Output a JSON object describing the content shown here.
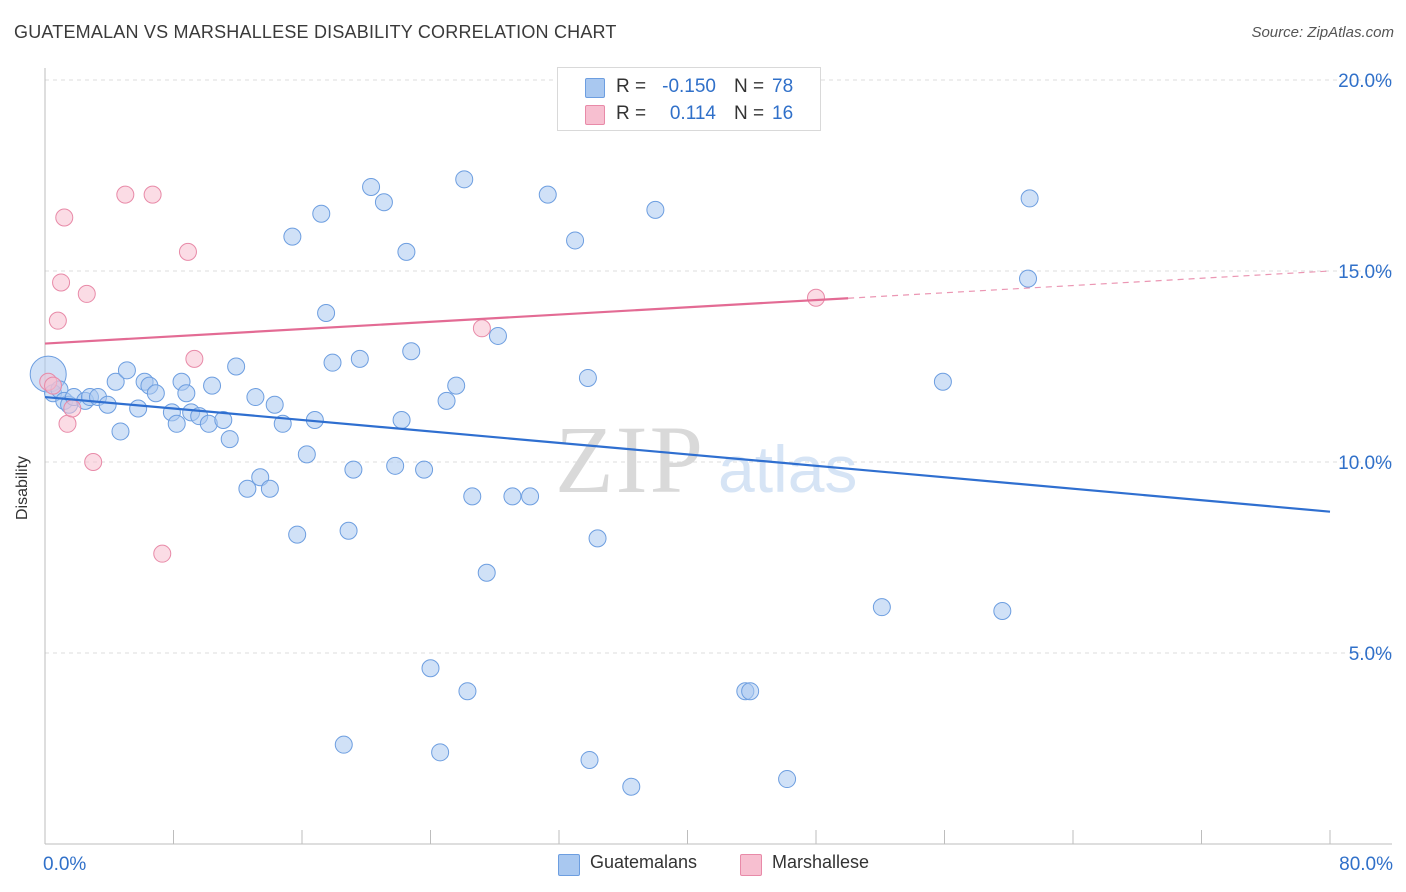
{
  "title": "GUATEMALAN VS MARSHALLESE DISABILITY CORRELATION CHART",
  "source": "Source: ZipAtlas.com",
  "watermark": {
    "zip": "ZIP",
    "atlas": "atlas"
  },
  "stats": [
    {
      "r_label": "R =",
      "r_value": "-0.150",
      "n_label": "N =",
      "n_value": "78",
      "color": "#a9c8f0",
      "border": "#6d9ee0"
    },
    {
      "r_label": "R =",
      "r_value": "0.114",
      "n_label": "N =",
      "n_value": "16",
      "color": "#f7bfd0",
      "border": "#e88aa8"
    }
  ],
  "legend": [
    {
      "label": "Guatemalans",
      "color": "#a9c8f0",
      "border": "#6d9ee0"
    },
    {
      "label": "Marshallese",
      "color": "#f7bfd0",
      "border": "#e88aa8"
    }
  ],
  "chart_data": {
    "type": "scatter",
    "title": "GUATEMALAN VS MARSHALLESE DISABILITY CORRELATION CHART",
    "xlabel": "",
    "ylabel": "Disability",
    "xlim": [
      0,
      80
    ],
    "ylim": [
      0,
      20
    ],
    "x_tick_labels": [
      {
        "value": 0,
        "label": "0.0%"
      },
      {
        "value": 80,
        "label": "80.0%"
      }
    ],
    "y_tick_labels": [
      {
        "value": 5,
        "label": "5.0%"
      },
      {
        "value": 10,
        "label": "10.0%"
      },
      {
        "value": 15,
        "label": "15.0%"
      },
      {
        "value": 20,
        "label": "20.0%"
      }
    ],
    "grid": {
      "horizontal": true,
      "vertical": false,
      "style": "dashed"
    },
    "series": [
      {
        "name": "Guatemalans",
        "color": "#a9c8f0",
        "stroke": "#6d9ee0",
        "line_color": "#2f6fd0",
        "trend": {
          "x": [
            0,
            80
          ],
          "y": [
            11.7,
            8.7
          ],
          "solid_until": 80
        },
        "points": [
          [
            0.2,
            12.3
          ],
          [
            0.5,
            11.8
          ],
          [
            0.9,
            11.9
          ],
          [
            1.2,
            11.6
          ],
          [
            1.5,
            11.5
          ],
          [
            1.8,
            11.7
          ],
          [
            2.5,
            11.6
          ],
          [
            2.8,
            11.7
          ],
          [
            3.3,
            11.7
          ],
          [
            3.9,
            11.5
          ],
          [
            4.4,
            12.1
          ],
          [
            4.7,
            10.8
          ],
          [
            5.1,
            12.4
          ],
          [
            5.8,
            11.4
          ],
          [
            6.2,
            12.1
          ],
          [
            6.5,
            12.0
          ],
          [
            6.9,
            11.8
          ],
          [
            7.9,
            11.3
          ],
          [
            8.2,
            11.0
          ],
          [
            8.5,
            12.1
          ],
          [
            8.8,
            11.8
          ],
          [
            9.1,
            11.3
          ],
          [
            9.6,
            11.2
          ],
          [
            10.2,
            11.0
          ],
          [
            10.4,
            12.0
          ],
          [
            11.1,
            11.1
          ],
          [
            11.5,
            10.6
          ],
          [
            11.9,
            12.5
          ],
          [
            12.6,
            9.3
          ],
          [
            13.1,
            11.7
          ],
          [
            13.4,
            9.6
          ],
          [
            14.0,
            9.3
          ],
          [
            14.3,
            11.5
          ],
          [
            14.8,
            11.0
          ],
          [
            15.4,
            15.9
          ],
          [
            15.7,
            8.1
          ],
          [
            16.3,
            10.2
          ],
          [
            16.8,
            11.1
          ],
          [
            17.2,
            16.5
          ],
          [
            17.5,
            13.9
          ],
          [
            17.9,
            12.6
          ],
          [
            18.6,
            2.6
          ],
          [
            18.9,
            8.2
          ],
          [
            19.2,
            9.8
          ],
          [
            19.6,
            12.7
          ],
          [
            20.3,
            17.2
          ],
          [
            21.1,
            16.8
          ],
          [
            21.8,
            9.9
          ],
          [
            22.2,
            11.1
          ],
          [
            22.5,
            15.5
          ],
          [
            22.8,
            12.9
          ],
          [
            23.6,
            9.8
          ],
          [
            24.0,
            4.6
          ],
          [
            24.6,
            2.4
          ],
          [
            25.0,
            11.6
          ],
          [
            25.6,
            12.0
          ],
          [
            26.1,
            17.4
          ],
          [
            26.3,
            4.0
          ],
          [
            26.6,
            9.1
          ],
          [
            27.5,
            7.1
          ],
          [
            28.2,
            13.3
          ],
          [
            29.1,
            9.1
          ],
          [
            30.2,
            9.1
          ],
          [
            31.3,
            17.0
          ],
          [
            33.0,
            15.8
          ],
          [
            33.8,
            12.2
          ],
          [
            34.4,
            8.0
          ],
          [
            36.5,
            1.5
          ],
          [
            38.0,
            16.6
          ],
          [
            43.6,
            4.0
          ],
          [
            43.9,
            4.0
          ],
          [
            46.2,
            1.7
          ],
          [
            52.1,
            6.2
          ],
          [
            55.9,
            12.1
          ],
          [
            59.6,
            6.1
          ],
          [
            61.3,
            16.9
          ],
          [
            61.2,
            14.8
          ],
          [
            33.9,
            2.2
          ]
        ],
        "big_point_index": 0
      },
      {
        "name": "Marshallese",
        "color": "#f7bfd0",
        "stroke": "#e88aa8",
        "line_color": "#e36b94",
        "trend": {
          "x": [
            0,
            80
          ],
          "y": [
            13.1,
            15.0
          ],
          "solid_until": 50
        },
        "points": [
          [
            0.2,
            12.1
          ],
          [
            0.5,
            12.0
          ],
          [
            0.8,
            13.7
          ],
          [
            1.0,
            14.7
          ],
          [
            1.2,
            16.4
          ],
          [
            1.4,
            11.0
          ],
          [
            1.7,
            11.4
          ],
          [
            2.6,
            14.4
          ],
          [
            3.0,
            10.0
          ],
          [
            5.0,
            17.0
          ],
          [
            6.7,
            17.0
          ],
          [
            7.3,
            7.6
          ],
          [
            8.9,
            15.5
          ],
          [
            9.3,
            12.7
          ],
          [
            27.2,
            13.5
          ],
          [
            48.0,
            14.3
          ]
        ]
      }
    ]
  }
}
